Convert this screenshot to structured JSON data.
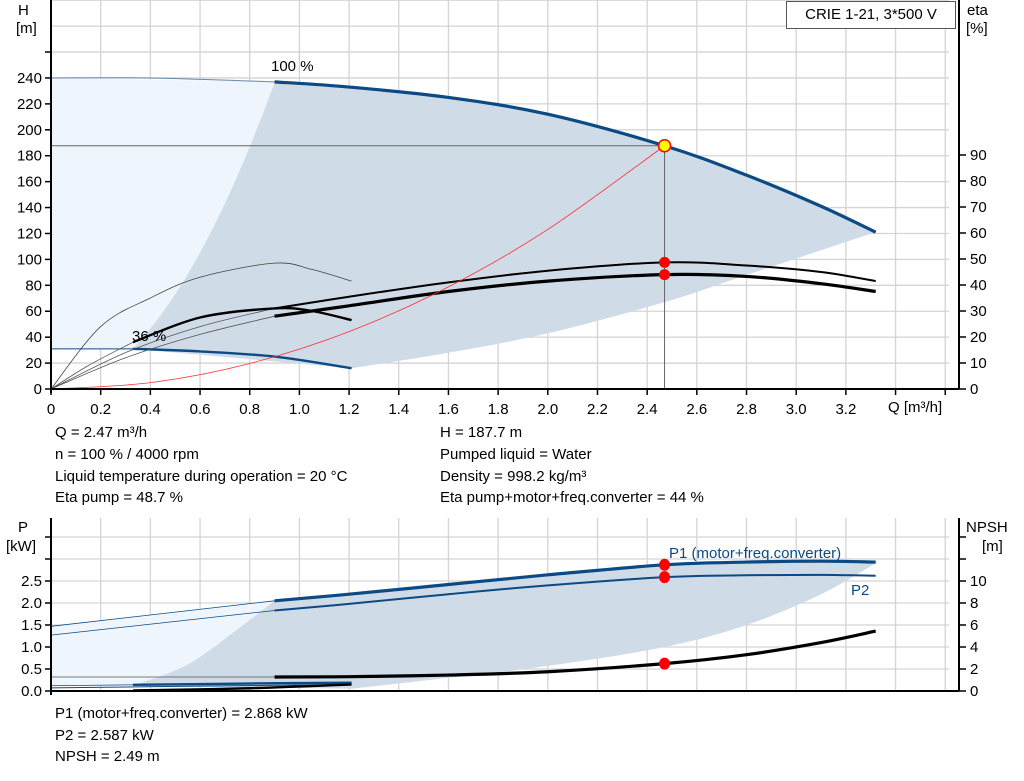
{
  "chart_data": [
    {
      "type": "line",
      "title": "CRIE 1-21, 3*500 V",
      "xlabel": "Q [m³/h]",
      "ylabel": "H\n[m]",
      "ylabel_left": {
        "name": "H",
        "unit": "[m]"
      },
      "ylabel_right": {
        "name": "eta",
        "unit": "[%]"
      },
      "xlim": [
        0,
        3.6
      ],
      "ylim": [
        0,
        280
      ],
      "y2lim": [
        0,
        140
      ],
      "grid": true,
      "legend_placement": "top-right",
      "x_ticks": [
        "0",
        "0.2",
        "0.4",
        "0.6",
        "0.8",
        "1.0",
        "1.2",
        "1.4",
        "1.6",
        "1.8",
        "2.0",
        "2.2",
        "2.4",
        "2.6",
        "2.8",
        "3.0",
        "3.2"
      ],
      "y_ticks": [
        "0",
        "20",
        "40",
        "60",
        "80",
        "100",
        "120",
        "140",
        "160",
        "180",
        "200",
        "220",
        "240"
      ],
      "y2_ticks": [
        "0",
        "10",
        "20",
        "30",
        "40",
        "50",
        "60",
        "70",
        "80",
        "90"
      ],
      "speed_labels": [
        {
          "text": "100 %",
          "x": 0.9,
          "y": 245
        },
        {
          "text": "36 %",
          "x": 0.33,
          "y": 34
        }
      ],
      "colors": {
        "head": "#0b4a85",
        "eta": "#000000",
        "system": "#ff3030",
        "region_dark": "#cfdbe7",
        "region_light": "#eef5fc",
        "duty_point": "#ffff00",
        "marker": "#ff0000"
      },
      "regions": {
        "operating_area": {
          "upper": [
            [
              0.9,
              237
            ],
            [
              1.2,
              233
            ],
            [
              1.6,
              225
            ],
            [
              2.0,
              212
            ],
            [
              2.47,
              187.7
            ],
            [
              2.8,
              165
            ],
            [
              3.1,
              141
            ],
            [
              3.32,
              121
            ]
          ],
          "lower": [
            [
              3.32,
              121
            ],
            [
              2.8,
              88
            ],
            [
              2.47,
              67
            ],
            [
              2.0,
              43
            ],
            [
              1.6,
              28
            ],
            [
              1.21,
              16
            ]
          ],
          "left_parabola_k": 292,
          "left_from": [
            0.33,
            31
          ]
        },
        "extended_area": {
          "top": 240,
          "bottom": 31
        }
      },
      "curves": {
        "head_100": {
          "axis": "H",
          "points": [
            [
              0.9,
              237
            ],
            [
              1.2,
              233
            ],
            [
              1.6,
              225
            ],
            [
              2.0,
              212
            ],
            [
              2.47,
              187.7
            ],
            [
              2.8,
              165
            ],
            [
              3.1,
              141
            ],
            [
              3.32,
              121
            ]
          ]
        },
        "head_100_ext": {
          "axis": "H",
          "points": [
            [
              0,
              240
            ],
            [
              0.4,
              240
            ],
            [
              0.9,
              237
            ]
          ]
        },
        "head_36": {
          "axis": "H",
          "points": [
            [
              0.33,
              31
            ],
            [
              0.6,
              29
            ],
            [
              0.9,
              25
            ],
            [
              1.21,
              16
            ]
          ]
        },
        "head_36_ext": {
          "axis": "H",
          "points": [
            [
              0,
              31
            ],
            [
              0.33,
              31
            ]
          ]
        },
        "eta_pump_100": {
          "axis": "eta",
          "points": [
            [
              0.9,
              31
            ],
            [
              1.2,
              35.5
            ],
            [
              1.6,
              41
            ],
            [
              2.0,
              45.5
            ],
            [
              2.47,
              48.7
            ],
            [
              2.8,
              47.5
            ],
            [
              3.1,
              45
            ],
            [
              3.32,
              41.5
            ]
          ]
        },
        "eta_total_100": {
          "axis": "eta",
          "points": [
            [
              0.9,
              28
            ],
            [
              1.2,
              32
            ],
            [
              1.6,
              37.5
            ],
            [
              2.0,
              41.5
            ],
            [
              2.47,
              44
            ],
            [
              2.8,
              43.3
            ],
            [
              3.1,
              40.5
            ],
            [
              3.32,
              37.5
            ]
          ]
        },
        "eta_pump_100_ext": {
          "axis": "eta",
          "points": [
            [
              0,
              0
            ],
            [
              0.3,
              14
            ],
            [
              0.6,
              24
            ],
            [
              0.9,
              31
            ]
          ]
        },
        "eta_total_100_ext": {
          "axis": "eta",
          "points": [
            [
              0,
              0
            ],
            [
              0.3,
              12
            ],
            [
              0.6,
              21
            ],
            [
              0.9,
              28
            ]
          ]
        },
        "eta_pump_36": {
          "axis": "eta",
          "points": [
            [
              0,
              0
            ],
            [
              0.2,
              24
            ],
            [
              0.4,
              35
            ],
            [
              0.6,
              43
            ],
            [
              0.9,
              48.4
            ],
            [
              1.05,
              46
            ],
            [
              1.21,
              41.5
            ]
          ]
        },
        "eta_total_36": {
          "axis": "eta",
          "points": [
            [
              0.33,
              18
            ],
            [
              0.6,
              27.5
            ],
            [
              0.9,
              31
            ],
            [
              1.05,
              30
            ],
            [
              1.21,
              26.5
            ]
          ]
        },
        "eta_total_36_ext": {
          "axis": "eta",
          "points": [
            [
              0,
              0
            ],
            [
              0.15,
              9
            ],
            [
              0.33,
              18
            ]
          ]
        },
        "system": {
          "axis": "H",
          "points": [
            [
              0,
              0
            ],
            [
              0.4,
              4.9
            ],
            [
              0.8,
              19.7
            ],
            [
              1.2,
              44.3
            ],
            [
              1.6,
              78.8
            ],
            [
              2.0,
              123.1
            ],
            [
              2.47,
              187.7
            ]
          ]
        }
      },
      "duty_point": {
        "x": 2.47,
        "y": 187.7
      },
      "markers": [
        {
          "axis": "eta",
          "x": 2.47,
          "y": 48.7
        },
        {
          "axis": "eta",
          "x": 2.47,
          "y": 44
        }
      ]
    },
    {
      "type": "line",
      "ylabel_left": {
        "name": "P",
        "unit": "[kW]"
      },
      "ylabel_right": {
        "name": "NPSH",
        "unit": "[m]"
      },
      "xlim": [
        0,
        3.6
      ],
      "ylim": [
        0,
        3.9
      ],
      "y2lim": [
        0,
        14
      ],
      "grid": true,
      "y_ticks": [
        "0.0",
        "0.5",
        "1.0",
        "1.5",
        "2.0",
        "2.5"
      ],
      "y2_ticks": [
        "0",
        "2",
        "4",
        "6",
        "8",
        "10"
      ],
      "regions": {
        "operating_area": {
          "upper": [
            [
              0.9,
              2.05
            ],
            [
              1.2,
              2.2
            ],
            [
              1.6,
              2.42
            ],
            [
              2.0,
              2.62
            ],
            [
              2.47,
              2.868
            ],
            [
              2.8,
              2.93
            ],
            [
              3.1,
              2.95
            ],
            [
              3.32,
              2.93
            ]
          ],
          "lower": [
            [
              3.32,
              2.9
            ],
            [
              3.1,
              2.2
            ],
            [
              2.8,
              1.5
            ],
            [
              2.47,
              1.0
            ],
            [
              2.0,
              0.57
            ],
            [
              1.6,
              0.3
            ],
            [
              1.21,
              0.05
            ]
          ],
          "left": [
            [
              0.9,
              2.05
            ],
            [
              0.75,
              1.4
            ],
            [
              0.55,
              0.6
            ],
            [
              0.33,
              0.12
            ]
          ]
        }
      },
      "curves": {
        "p1_100": {
          "name": "P1 (motor+freq.converter)",
          "axis": "P",
          "points": [
            [
              0.9,
              2.05
            ],
            [
              1.2,
              2.2
            ],
            [
              1.6,
              2.42
            ],
            [
              2.0,
              2.64
            ],
            [
              2.47,
              2.868
            ],
            [
              2.8,
              2.93
            ],
            [
              3.1,
              2.95
            ],
            [
              3.32,
              2.93
            ]
          ]
        },
        "p2_100": {
          "name": "P2",
          "axis": "P",
          "points": [
            [
              0.9,
              1.83
            ],
            [
              1.2,
              1.98
            ],
            [
              1.6,
              2.2
            ],
            [
              2.0,
              2.4
            ],
            [
              2.47,
              2.587
            ],
            [
              2.8,
              2.63
            ],
            [
              3.1,
              2.64
            ],
            [
              3.32,
              2.62
            ]
          ]
        },
        "p1_100_ext": {
          "axis": "P",
          "points": [
            [
              0,
              1.47
            ],
            [
              0.9,
              2.05
            ]
          ]
        },
        "p2_100_ext": {
          "axis": "P",
          "points": [
            [
              0,
              1.27
            ],
            [
              0.9,
              1.83
            ]
          ]
        },
        "npsh_100": {
          "axis": "NPSH",
          "points": [
            [
              0.9,
              1.27
            ],
            [
              1.2,
              1.3
            ],
            [
              1.6,
              1.45
            ],
            [
              2.0,
              1.75
            ],
            [
              2.47,
              2.49
            ],
            [
              2.8,
              3.3
            ],
            [
              3.1,
              4.4
            ],
            [
              3.32,
              5.45
            ]
          ]
        },
        "npsh_100_ext": {
          "axis": "NPSH",
          "points": [
            [
              0,
              1.27
            ],
            [
              0.9,
              1.27
            ]
          ]
        },
        "p1_36": {
          "axis": "P",
          "points": [
            [
              0.33,
              0.14
            ],
            [
              0.8,
              0.17
            ],
            [
              1.21,
              0.19
            ]
          ]
        },
        "p1_36_ext": {
          "axis": "P",
          "points": [
            [
              0,
              0.12
            ],
            [
              0.33,
              0.14
            ]
          ]
        },
        "p2_36": {
          "axis": "P",
          "points": [
            [
              0,
              0.07
            ],
            [
              0.6,
              0.11
            ],
            [
              1.21,
              0.15
            ]
          ]
        },
        "npsh_36": {
          "axis": "NPSH",
          "points": [
            [
              0.33,
              0.05
            ],
            [
              0.8,
              0.25
            ],
            [
              1.21,
              0.6
            ]
          ]
        },
        "npsh_36_ext": {
          "axis": "NPSH",
          "points": [
            [
              0,
              0.05
            ],
            [
              0.33,
              0.05
            ]
          ]
        }
      },
      "markers": [
        {
          "axis": "P",
          "x": 2.47,
          "y": 2.868
        },
        {
          "axis": "P",
          "x": 2.47,
          "y": 2.587
        },
        {
          "axis": "NPSH",
          "x": 2.47,
          "y": 2.49
        }
      ]
    }
  ],
  "legend": {
    "title": "CRIE 1-21, 3*500 V"
  },
  "info_top": {
    "left": [
      "Q = 2.47 m³/h",
      "n = 100 % / 4000 rpm",
      "Liquid temperature during operation = 20 °C",
      "Eta pump = 48.7 %"
    ],
    "right": [
      "H = 187.7 m",
      "Pumped liquid = Water",
      "Density = 998.2 kg/m³",
      "Eta pump+motor+freq.converter = 44 %"
    ]
  },
  "info_bottom": [
    "P1 (motor+freq.converter) = 2.868 kW",
    "P2 = 2.587 kW",
    "NPSH = 2.49 m"
  ]
}
